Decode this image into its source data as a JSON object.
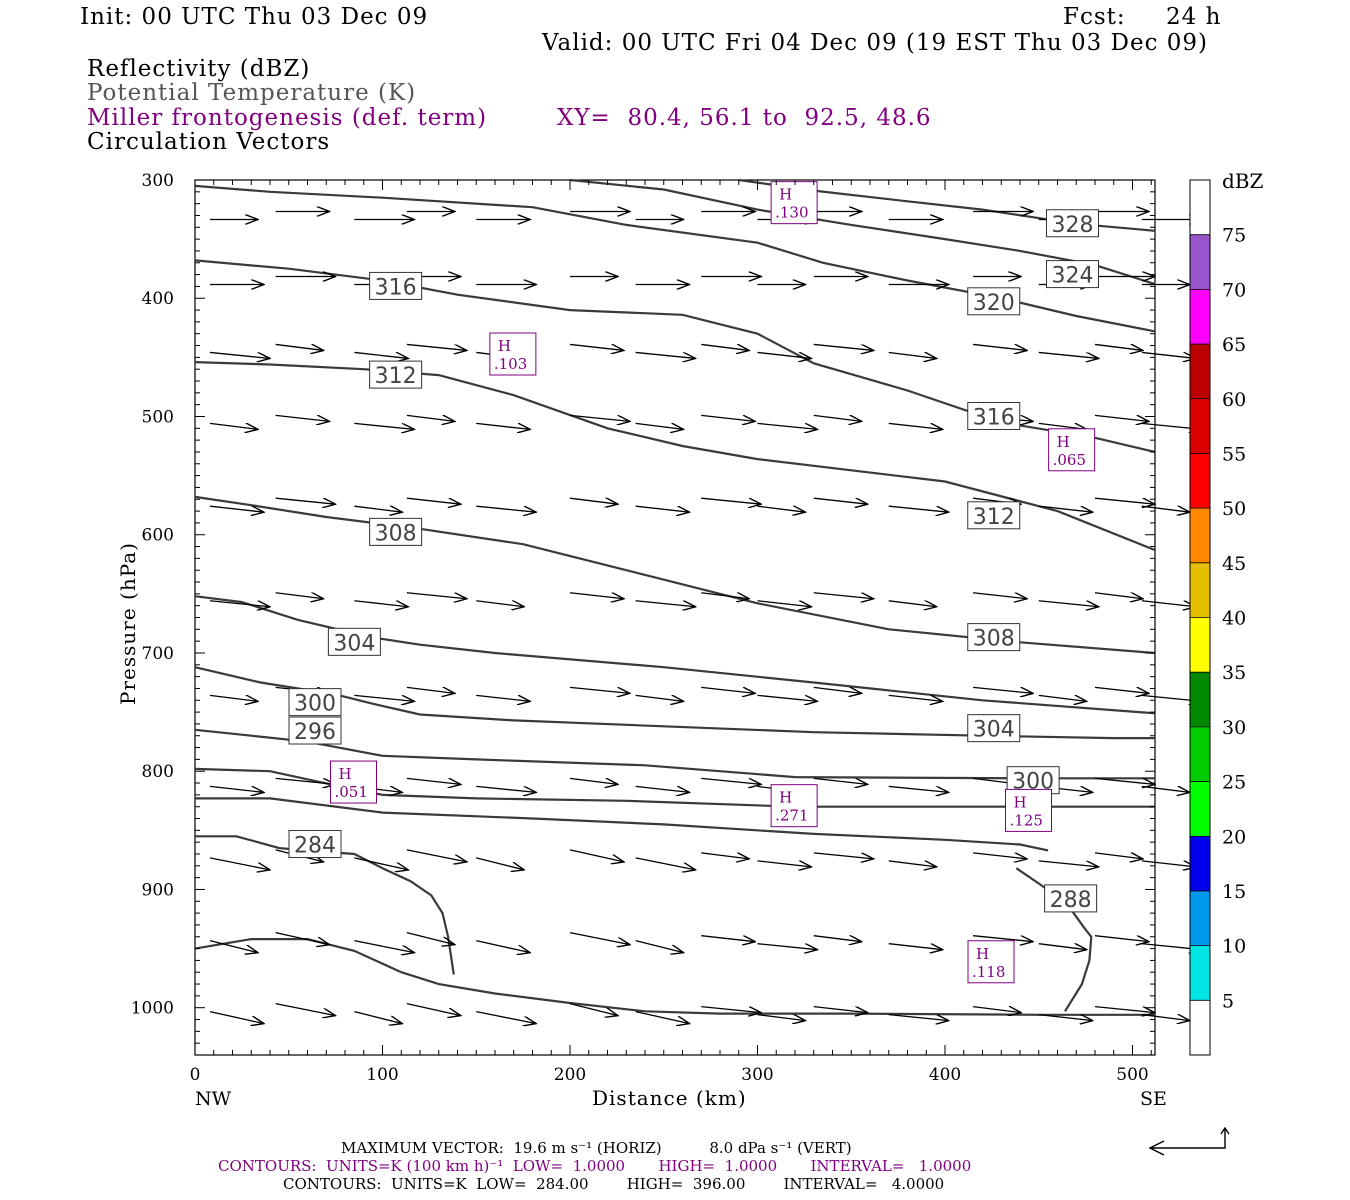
{
  "header": {
    "init": "Init: 00 UTC Thu 03 Dec 09",
    "fcst_label": "Fcst:",
    "fcst_value": "24 h",
    "valid": "Valid: 00 UTC Fri 04 Dec 09 (19 EST Thu 03 Dec 09)"
  },
  "legend": {
    "line1": "Reflectivity (dBZ)",
    "line2": "Potential Temperature (K)",
    "line3": "Miller frontogenesis (def. term)",
    "xy": "XY=  80.4, 56.1 to  92.5, 48.6",
    "line4": "Circulation Vectors"
  },
  "footer": {
    "max_vector": "MAXIMUM VECTOR:  19.6 m s⁻¹ (HORIZ)          8.0 dPa s⁻¹ (VERT)",
    "contours_fronto": "CONTOURS:  UNITS=K (100 km h)⁻¹  LOW=  1.0000       HIGH=  1.0000       INTERVAL=   1.0000",
    "contours_theta": "CONTOURS:  UNITS=K  LOW=  284.00        HIGH=  396.00        INTERVAL=   4.0000"
  },
  "colors": {
    "theta_line": "#3a3a3a",
    "fronto": "#800080",
    "vector": "#000000"
  },
  "chart_data": {
    "type": "cross-section",
    "xlabel": "Distance (km)",
    "ylabel": "Pressure (hPa)",
    "xlim": [
      0,
      512
    ],
    "ylim": [
      1040,
      300
    ],
    "x_ticks": [
      0,
      100,
      200,
      300,
      400,
      500
    ],
    "y_ticks": [
      300,
      400,
      500,
      600,
      700,
      800,
      900,
      1000
    ],
    "x_end_labels": [
      "NW",
      "SE"
    ],
    "colorbar": {
      "title": "dBZ",
      "levels": [
        5,
        10,
        15,
        20,
        25,
        30,
        35,
        40,
        45,
        50,
        55,
        60,
        65,
        70,
        75
      ],
      "colors": [
        "#ffffff",
        "#00e6e6",
        "#0099ee",
        "#0000ee",
        "#00ff00",
        "#00cc00",
        "#008800",
        "#ffff00",
        "#e6bf00",
        "#ff8800",
        "#ff0000",
        "#dd0000",
        "#bb0000",
        "#ff00ff",
        "#9955cc",
        "#ffffff"
      ]
    },
    "theta_contours": [
      {
        "value": 284,
        "points": [
          [
            0,
            855
          ],
          [
            22,
            855
          ],
          [
            45,
            865
          ],
          [
            68,
            868
          ],
          [
            85,
            870
          ],
          [
            100,
            882
          ],
          [
            115,
            893
          ],
          [
            126,
            905
          ],
          [
            132,
            920
          ],
          [
            135,
            940
          ],
          [
            138,
            972
          ]
        ]
      },
      {
        "value": 288,
        "points": [
          [
            0,
            950
          ],
          [
            30,
            942
          ],
          [
            60,
            942
          ],
          [
            85,
            952
          ],
          [
            110,
            970
          ],
          [
            130,
            980
          ],
          [
            160,
            988
          ],
          [
            200,
            996
          ],
          [
            240,
            1003
          ],
          [
            280,
            1005
          ],
          [
            350,
            1005
          ],
          [
            450,
            1006
          ],
          [
            512,
            1006
          ]
        ]
      },
      {
        "value": 288,
        "points": [
          [
            438,
            882
          ],
          [
            450,
            895
          ],
          [
            465,
            912
          ],
          [
            474,
            932
          ],
          [
            478,
            940
          ],
          [
            477,
            960
          ],
          [
            473,
            980
          ],
          [
            464,
            1003
          ]
        ]
      },
      {
        "value": 288,
        "points": [
          [
            0,
            823
          ],
          [
            40,
            823
          ],
          [
            100,
            835
          ],
          [
            180,
            840
          ],
          [
            250,
            845
          ],
          [
            330,
            853
          ],
          [
            400,
            858
          ],
          [
            440,
            862
          ],
          [
            455,
            867
          ]
        ]
      },
      {
        "value": 292,
        "points": [
          [
            0,
            798
          ],
          [
            40,
            800
          ],
          [
            75,
            812
          ],
          [
            100,
            820
          ],
          [
            150,
            823
          ],
          [
            230,
            825
          ],
          [
            320,
            830
          ],
          [
            420,
            830
          ],
          [
            512,
            830
          ]
        ]
      },
      {
        "value": 296,
        "points": [
          [
            0,
            765
          ],
          [
            30,
            770
          ],
          [
            60,
            775
          ],
          [
            100,
            787
          ],
          [
            150,
            790
          ],
          [
            240,
            795
          ],
          [
            320,
            805
          ],
          [
            440,
            806
          ],
          [
            512,
            806
          ]
        ]
      },
      {
        "value": 300,
        "points": [
          [
            0,
            712
          ],
          [
            35,
            725
          ],
          [
            75,
            735
          ],
          [
            95,
            743
          ],
          [
            120,
            752
          ],
          [
            170,
            757
          ],
          [
            250,
            762
          ],
          [
            330,
            767
          ],
          [
            420,
            770
          ],
          [
            490,
            772
          ],
          [
            512,
            772
          ]
        ]
      },
      {
        "value": 304,
        "points": [
          [
            0,
            652
          ],
          [
            25,
            657
          ],
          [
            55,
            672
          ],
          [
            95,
            687
          ],
          [
            120,
            693
          ],
          [
            160,
            700
          ],
          [
            250,
            712
          ],
          [
            330,
            725
          ],
          [
            420,
            740
          ],
          [
            512,
            751
          ]
        ]
      },
      {
        "value": 308,
        "points": [
          [
            0,
            568
          ],
          [
            30,
            575
          ],
          [
            70,
            585
          ],
          [
            120,
            595
          ],
          [
            175,
            608
          ],
          [
            230,
            630
          ],
          [
            300,
            658
          ],
          [
            370,
            680
          ],
          [
            440,
            691
          ],
          [
            512,
            700
          ]
        ]
      },
      {
        "value": 312,
        "points": [
          [
            0,
            454
          ],
          [
            40,
            456
          ],
          [
            90,
            460
          ],
          [
            130,
            465
          ],
          [
            170,
            482
          ],
          [
            220,
            510
          ],
          [
            260,
            525
          ],
          [
            300,
            536
          ],
          [
            400,
            555
          ],
          [
            460,
            580
          ],
          [
            512,
            613
          ]
        ]
      },
      {
        "value": 316,
        "points": [
          [
            0,
            368
          ],
          [
            50,
            375
          ],
          [
            100,
            385
          ],
          [
            140,
            397
          ],
          [
            200,
            410
          ],
          [
            260,
            414
          ],
          [
            300,
            430
          ],
          [
            330,
            455
          ],
          [
            380,
            478
          ],
          [
            430,
            505
          ],
          [
            480,
            518
          ],
          [
            512,
            530
          ]
        ]
      },
      {
        "value": 320,
        "points": [
          [
            0,
            305
          ],
          [
            40,
            310
          ],
          [
            100,
            315
          ],
          [
            180,
            323
          ],
          [
            230,
            338
          ],
          [
            300,
            353
          ],
          [
            335,
            370
          ],
          [
            380,
            385
          ],
          [
            430,
            400
          ],
          [
            470,
            415
          ],
          [
            512,
            428
          ]
        ]
      },
      {
        "value": 324,
        "points": [
          [
            200,
            300
          ],
          [
            250,
            308
          ],
          [
            300,
            325
          ],
          [
            350,
            338
          ],
          [
            400,
            350
          ],
          [
            440,
            360
          ],
          [
            480,
            372
          ],
          [
            512,
            388
          ]
        ]
      },
      {
        "value": 328,
        "points": [
          [
            290,
            300
          ],
          [
            330,
            309
          ],
          [
            380,
            318
          ],
          [
            420,
            325
          ],
          [
            470,
            337
          ],
          [
            512,
            343
          ]
        ]
      }
    ],
    "contour_labels": [
      {
        "value": 284,
        "x": 64,
        "p": 862
      },
      {
        "value": 296,
        "x": 64,
        "p": 766
      },
      {
        "value": 300,
        "x": 64,
        "p": 742
      },
      {
        "value": 304,
        "x": 85,
        "p": 691
      },
      {
        "value": 308,
        "x": 107,
        "p": 598
      },
      {
        "value": 312,
        "x": 107,
        "p": 465
      },
      {
        "value": 316,
        "x": 107,
        "p": 390
      },
      {
        "value": 316,
        "x": 426,
        "p": 500
      },
      {
        "value": 312,
        "x": 426,
        "p": 584
      },
      {
        "value": 308,
        "x": 426,
        "p": 687
      },
      {
        "value": 304,
        "x": 426,
        "p": 764
      },
      {
        "value": 300,
        "x": 447,
        "p": 808
      },
      {
        "value": 288,
        "x": 467,
        "p": 908
      },
      {
        "value": 320,
        "x": 426,
        "p": 403
      },
      {
        "value": 324,
        "x": 468,
        "p": 380
      },
      {
        "value": 328,
        "x": 468,
        "p": 337
      }
    ],
    "fronto_maxima": [
      {
        "label": "H",
        "value": ".130",
        "x": 319,
        "p": 320
      },
      {
        "label": "H",
        "value": ".103",
        "x": 169,
        "p": 448
      },
      {
        "label": "H",
        "value": ".065",
        "x": 467,
        "p": 529
      },
      {
        "label": "H",
        "value": ".051",
        "x": 84,
        "p": 810
      },
      {
        "label": "H",
        "value": ".271",
        "x": 319,
        "p": 830
      },
      {
        "label": "H",
        "value": ".125",
        "x": 444,
        "p": 834
      },
      {
        "label": "H",
        "value": ".118",
        "x": 424,
        "p": 962
      }
    ],
    "vector_rows": [
      {
        "p": 330,
        "y_shift": 0
      },
      {
        "p": 385,
        "y_shift": 0
      },
      {
        "p": 445,
        "y_shift": 0
      },
      {
        "p": 505,
        "y_shift": 0
      },
      {
        "p": 575,
        "y_shift": 0
      },
      {
        "p": 655,
        "y_shift": 0
      },
      {
        "p": 735,
        "y_shift": 0
      },
      {
        "p": 812,
        "y_shift": 0
      },
      {
        "p": 875,
        "y_shift": 0
      },
      {
        "p": 945,
        "y_shift": 0
      },
      {
        "p": 1005,
        "y_shift": 0
      }
    ],
    "vector_x_km": [
      8,
      43,
      85,
      113,
      150,
      200,
      235,
      270,
      300,
      330,
      370,
      415,
      450,
      480,
      505
    ]
  }
}
